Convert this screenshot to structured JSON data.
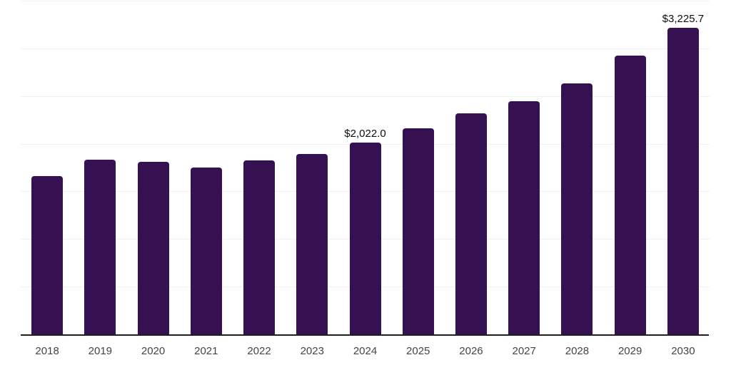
{
  "chart_data": {
    "type": "bar",
    "title": "",
    "subtitle": "",
    "xlabel": "",
    "ylabel": "",
    "categories": [
      "2018",
      "2019",
      "2020",
      "2021",
      "2022",
      "2023",
      "2024",
      "2025",
      "2026",
      "2027",
      "2028",
      "2029",
      "2030"
    ],
    "values": [
      1670,
      1840,
      1815,
      1760,
      1830,
      1900,
      2022.0,
      2170,
      2328,
      2450,
      2637,
      2928,
      3225.7
    ],
    "data_labels": [
      null,
      null,
      null,
      null,
      null,
      null,
      "$2,022.0",
      null,
      null,
      null,
      null,
      null,
      "$3,225.7"
    ],
    "ylim": [
      0,
      3500
    ],
    "gridline_step": 500,
    "grid": "horizontal",
    "y_axis_labels_visible": false,
    "legend_position": "none",
    "colors": {
      "bar": "#351151",
      "axis_line": "#1f1f1f",
      "gridline": "#f1f1f3",
      "tick_label": "#444444",
      "data_label": "#0d0d0d",
      "background": "#ffffff"
    }
  }
}
